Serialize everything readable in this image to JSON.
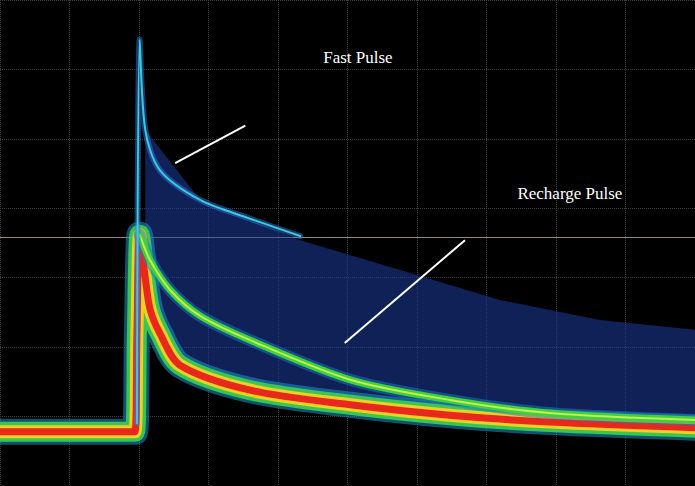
{
  "chart_data": {
    "type": "line",
    "xlim": [
      0,
      10
    ],
    "ylim": [
      0,
      7
    ],
    "xticks": [
      0,
      1,
      2,
      3,
      4,
      5,
      6,
      7,
      8,
      9,
      10
    ],
    "yticks": [
      0,
      1,
      2,
      3,
      4,
      5,
      6,
      7
    ],
    "grid": true,
    "tick_labels": false,
    "hline": 3.59,
    "series": [
      {
        "type": "line",
        "color": "#e8281c",
        "line_style": "solid",
        "x": [
          0,
          1.94,
          1.97,
          2.01,
          2.09,
          2.16,
          2.3,
          2.59,
          3.6,
          5.04,
          6.47,
          7.91,
          10
        ],
        "values": [
          0.78,
          0.78,
          2.2,
          3.62,
          3.0,
          2.54,
          2.2,
          1.74,
          1.38,
          1.17,
          1.02,
          0.92,
          0.84
        ]
      },
      {
        "type": "line",
        "color": "#3cd23c",
        "line_style": "solid",
        "x": [
          2.01,
          2.16,
          2.45,
          2.88,
          3.6,
          5.04,
          6.47,
          7.91,
          10
        ],
        "values": [
          3.62,
          3.25,
          2.82,
          2.45,
          2.1,
          1.53,
          1.24,
          1.05,
          0.95
        ]
      },
      {
        "type": "line",
        "color": "#40c8d8",
        "line_style": "solid",
        "x": [
          1.97,
          2.01,
          2.09,
          2.3,
          2.88,
          3.6,
          4.32
        ],
        "values": [
          0.9,
          6.43,
          5.13,
          4.55,
          4.12,
          3.85,
          3.6
        ]
      },
      {
        "type": "area",
        "color": "#1e3ca0",
        "x": [
          2.09,
          2.88,
          4.32,
          5.76,
          7.19,
          8.63,
          10
        ],
        "values": [
          5.13,
          4.12,
          3.54,
          3.11,
          2.68,
          2.39,
          2.25
        ]
      }
    ],
    "annotations": [
      {
        "text": "Fast Pulse",
        "x": 5.15,
        "y": 6.17,
        "line": [
          [
            3.53,
            5.19
          ],
          [
            2.52,
            4.65
          ]
        ]
      },
      {
        "text": "Recharge Pulse",
        "x": 8.2,
        "y": 4.22,
        "line": [
          [
            6.69,
            3.54
          ],
          [
            4.96,
            2.06
          ]
        ]
      }
    ]
  }
}
